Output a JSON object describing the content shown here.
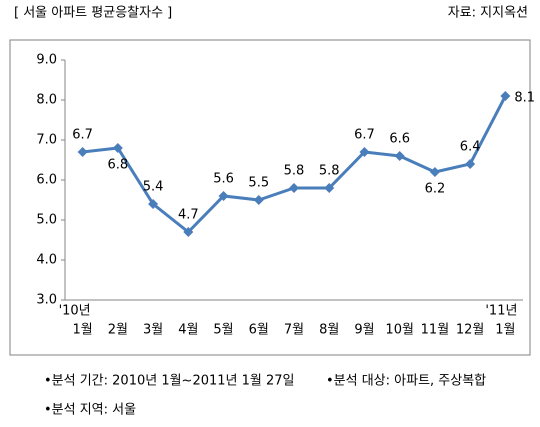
{
  "chart_data": {
    "type": "line",
    "title": "[ 서울 아파트 평균응찰자수 ]",
    "source": "자료: 지지옥션",
    "categories": [
      "1월",
      "2월",
      "3월",
      "4월",
      "5월",
      "6월",
      "7월",
      "8월",
      "9월",
      "10월",
      "11월",
      "12월",
      "1월"
    ],
    "annotations": [
      "'10년",
      "'11년"
    ],
    "series": [
      {
        "color": "#4a7ebb",
        "values": [
          6.7,
          6.8,
          5.4,
          4.7,
          5.6,
          5.5,
          5.8,
          5.8,
          6.7,
          6.6,
          6.2,
          6.4,
          8.1
        ]
      }
    ],
    "ylim": [
      3,
      9
    ],
    "yticks": [
      {
        "value": 3,
        "label": "3.0"
      },
      {
        "value": 4,
        "label": "4.0"
      },
      {
        "value": 5,
        "label": "5.0"
      },
      {
        "value": 6,
        "label": "6.0"
      },
      {
        "value": 7,
        "label": "7.0"
      },
      {
        "value": 8,
        "label": "8.0"
      },
      {
        "value": 9,
        "label": "9.0"
      }
    ],
    "grid": false,
    "notes": [
      "•분석 기간: 2010년 1월~2011년 1월 27일",
      "•분석 대상: 아파트, 주상복합",
      "•분석 지역: 서울"
    ]
  }
}
